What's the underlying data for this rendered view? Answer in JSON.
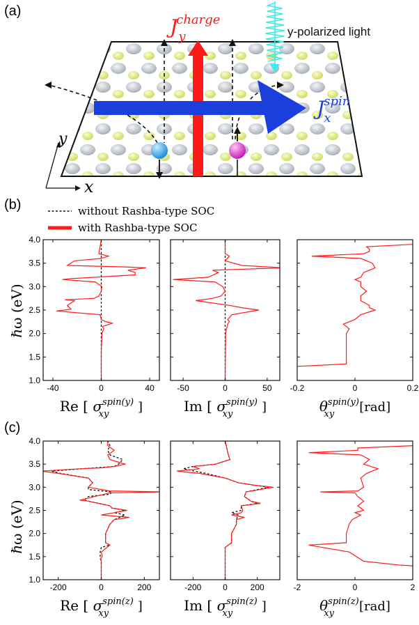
{
  "panel_labels": {
    "a": "(a)",
    "b": "(b)",
    "c": "(c)"
  },
  "schematic": {
    "charge_label": {
      "J": "J",
      "sub": "y",
      "sup": "charge"
    },
    "spin_label": {
      "J": "J",
      "sub": "x",
      "sup": "spin"
    },
    "light_label": "y-polarized light",
    "axis_x": "x",
    "axis_y": "y",
    "colors": {
      "charge": "#ff1a1a",
      "spin": "#1a3fdc",
      "light": "#3fe8f0",
      "atom_gray": "#c7ccd2",
      "atom_yellow": "#e6ee88",
      "electron_blue": "#2a9fe6",
      "electron_magenta": "#e629d8"
    }
  },
  "legend": {
    "without": "without Rashba-type SOC",
    "with": "with Rashba-type SOC"
  },
  "y_label": "ℏω (eV)",
  "chart_data": [
    {
      "id": "b1",
      "type": "line",
      "ylim": [
        1.0,
        4.0
      ],
      "xlim": [
        -48,
        48
      ],
      "yticks": [
        1.0,
        1.5,
        2.0,
        2.5,
        3.0,
        3.5,
        4.0
      ],
      "xticks": [
        {
          "v": -40,
          "l": "-40"
        },
        {
          "v": 0,
          "l": "0"
        },
        {
          "v": 40,
          "l": "40"
        }
      ],
      "xlabel": {
        "pre": "Re",
        "sup": "spin(y)",
        "sub": "xy"
      },
      "series": [
        {
          "name": "without Rashba-type SOC",
          "style": "dashed",
          "y": [
            1.0,
            4.0
          ],
          "x": [
            0,
            0
          ]
        },
        {
          "name": "with Rashba-type SOC",
          "style": "solid",
          "y": [
            1.0,
            1.6,
            2.0,
            2.1,
            2.15,
            2.2,
            2.22,
            2.24,
            2.26,
            2.3,
            2.4,
            2.48,
            2.5,
            2.52,
            2.6,
            2.7,
            2.72,
            2.75,
            2.8,
            2.9,
            3.0,
            3.1,
            3.15,
            3.17,
            3.2,
            3.25,
            3.3,
            3.35,
            3.4,
            3.42,
            3.45,
            3.55,
            3.6,
            3.65,
            3.7,
            4.0
          ],
          "x": [
            0,
            0,
            0.5,
            2,
            1,
            7,
            9,
            6,
            3,
            0,
            -1,
            -37,
            -30,
            -25,
            -28,
            -22,
            -30,
            -6,
            -2,
            0,
            0.5,
            -5,
            -32,
            -25,
            -5,
            28,
            28,
            22,
            37,
            20,
            -28,
            -22,
            0,
            6,
            -2,
            0
          ]
        }
      ]
    },
    {
      "id": "b2",
      "type": "line",
      "ylim": [
        1.0,
        4.0
      ],
      "xlim": [
        -65,
        65
      ],
      "yticks": [
        1.0,
        1.5,
        2.0,
        2.5,
        3.0,
        3.5,
        4.0
      ],
      "xticks": [
        {
          "v": -50,
          "l": "-50"
        },
        {
          "v": 0,
          "l": "0"
        },
        {
          "v": 50,
          "l": "50"
        }
      ],
      "xlabel": {
        "pre": "Im",
        "sup": "spin(y)",
        "sub": "xy"
      },
      "series": [
        {
          "name": "without Rashba-type SOC",
          "style": "dashed",
          "y": [
            1.0,
            4.0
          ],
          "x": [
            0,
            0
          ]
        },
        {
          "name": "with Rashba-type SOC",
          "style": "solid",
          "y": [
            1.0,
            2.0,
            2.2,
            2.25,
            2.3,
            2.4,
            2.5,
            2.55,
            2.6,
            2.7,
            2.75,
            2.8,
            2.9,
            3.0,
            3.1,
            3.15,
            3.2,
            3.3,
            3.35,
            3.4,
            3.45,
            3.55,
            3.65,
            3.7,
            4.0
          ],
          "x": [
            0,
            0.5,
            3,
            5,
            3,
            8,
            40,
            20,
            5,
            -35,
            -15,
            -5,
            0,
            -3,
            -12,
            -62,
            -20,
            -8,
            -15,
            70,
            20,
            0,
            5,
            0,
            0
          ]
        }
      ]
    },
    {
      "id": "b3",
      "type": "line",
      "ylim": [
        1.0,
        4.0
      ],
      "xlim": [
        -0.2,
        0.2
      ],
      "yticks": [
        1.0,
        1.5,
        2.0,
        2.5,
        3.0,
        3.5,
        4.0
      ],
      "xticks": [
        {
          "v": -0.2,
          "l": "-0.2"
        },
        {
          "v": 0,
          "l": "0"
        },
        {
          "v": 0.2,
          "l": "0.2"
        }
      ],
      "xlabel": {
        "pre": "θ",
        "sup": "spin(y)",
        "sub": "xy",
        "post": "[rad]"
      },
      "series": [
        {
          "name": "with Rashba-type SOC",
          "style": "solid",
          "y": [
            1.3,
            1.35,
            2.0,
            2.1,
            2.2,
            2.25,
            2.3,
            2.4,
            2.5,
            2.55,
            2.6,
            2.7,
            2.8,
            2.9,
            3.0,
            3.1,
            3.15,
            3.2,
            3.3,
            3.4,
            3.5,
            3.6,
            3.65,
            3.7,
            3.75,
            3.8,
            3.85,
            3.9
          ],
          "x": [
            -0.2,
            -0.03,
            -0.03,
            -0.02,
            -0.04,
            -0.02,
            0.0,
            0.02,
            0.07,
            0.05,
            0.05,
            0.02,
            0.02,
            0.04,
            0.02,
            0.02,
            0.0,
            0.02,
            0.03,
            0.07,
            0.06,
            0.02,
            -0.15,
            0.03,
            0.05,
            0.05,
            0.04,
            0.2
          ]
        }
      ]
    },
    {
      "id": "c1",
      "type": "line",
      "ylim": [
        1.0,
        4.0
      ],
      "xlim": [
        -270,
        270
      ],
      "yticks": [
        1.0,
        1.5,
        2.0,
        2.5,
        3.0,
        3.5,
        4.0
      ],
      "xticks": [
        {
          "v": -200,
          "l": "-200"
        },
        {
          "v": 0,
          "l": "0"
        },
        {
          "v": 200,
          "l": "200"
        }
      ],
      "xlabel": {
        "pre": "Re",
        "sup": "spin(z)",
        "sub": "xy"
      },
      "series": [
        {
          "name": "without Rashba-type SOC",
          "style": "dashed",
          "y": [
            1.0,
            1.4,
            1.5,
            1.6,
            1.7,
            1.75,
            1.8,
            2.0,
            2.2,
            2.3,
            2.4,
            2.45,
            2.5,
            2.55,
            2.6,
            2.7,
            2.72,
            2.8,
            2.85,
            2.9,
            2.95,
            3.0,
            3.1,
            3.2,
            3.3,
            3.35,
            3.4,
            3.45,
            3.5,
            3.6,
            3.7,
            3.8,
            3.9,
            4.0
          ],
          "x": [
            0,
            0,
            -5,
            -5,
            0,
            40,
            20,
            20,
            40,
            60,
            110,
            60,
            110,
            50,
            40,
            -60,
            -80,
            -60,
            40,
            50,
            -60,
            -60,
            -40,
            -60,
            -190,
            -230,
            -90,
            60,
            80,
            100,
            40,
            30,
            40,
            30
          ]
        },
        {
          "name": "with Rashba-type SOC",
          "style": "solid",
          "y": [
            1.0,
            1.4,
            1.45,
            1.5,
            1.6,
            1.75,
            1.8,
            2.0,
            2.2,
            2.3,
            2.35,
            2.4,
            2.45,
            2.5,
            2.55,
            2.6,
            2.7,
            2.72,
            2.8,
            2.88,
            2.9,
            2.92,
            3.0,
            3.1,
            3.2,
            3.3,
            3.35,
            3.4,
            3.42,
            3.45,
            3.5,
            3.6,
            3.7,
            3.8,
            3.9,
            4.0
          ],
          "x": [
            0,
            0,
            -5,
            5,
            0,
            40,
            20,
            20,
            40,
            60,
            130,
            0,
            60,
            120,
            50,
            40,
            -60,
            -100,
            -30,
            40,
            290,
            40,
            -60,
            -40,
            -60,
            -200,
            -280,
            -100,
            0,
            60,
            110,
            40,
            30,
            60,
            30,
            30
          ]
        }
      ]
    },
    {
      "id": "c2",
      "type": "line",
      "ylim": [
        1.0,
        4.0
      ],
      "xlim": [
        -340,
        340
      ],
      "yticks": [
        1.0,
        1.5,
        2.0,
        2.5,
        3.0,
        3.5,
        4.0
      ],
      "xticks": [
        {
          "v": -200,
          "l": "-200"
        },
        {
          "v": 0,
          "l": "0"
        },
        {
          "v": 200,
          "l": "200"
        }
      ],
      "xlabel": {
        "pre": "Im",
        "sup": "spin(z)",
        "sub": "xy"
      },
      "series": [
        {
          "name": "without Rashba-type SOC",
          "style": "dashed",
          "y": [
            1.0,
            1.7,
            1.8,
            2.0,
            2.2,
            2.3,
            2.4,
            2.45,
            2.5,
            2.6,
            2.65,
            2.7,
            2.8,
            2.9,
            3.0,
            3.05,
            3.1,
            3.2,
            3.3,
            3.4,
            3.45,
            3.5,
            3.6,
            3.7,
            4.0
          ],
          "x": [
            0,
            0,
            40,
            40,
            70,
            70,
            80,
            40,
            100,
            100,
            200,
            160,
            120,
            130,
            270,
            170,
            80,
            0,
            -120,
            -260,
            -200,
            -60,
            30,
            20,
            0
          ]
        },
        {
          "name": "with Rashba-type SOC",
          "style": "solid",
          "y": [
            1.0,
            1.7,
            1.8,
            2.0,
            2.2,
            2.3,
            2.35,
            2.4,
            2.45,
            2.5,
            2.6,
            2.65,
            2.7,
            2.8,
            2.9,
            3.0,
            3.05,
            3.1,
            3.2,
            3.3,
            3.35,
            3.4,
            3.45,
            3.5,
            3.6,
            3.7,
            4.0
          ],
          "x": [
            0,
            0,
            40,
            40,
            70,
            70,
            120,
            40,
            100,
            110,
            100,
            220,
            160,
            120,
            130,
            300,
            170,
            80,
            0,
            -160,
            -300,
            -160,
            -200,
            -60,
            30,
            20,
            0
          ]
        }
      ]
    },
    {
      "id": "c3",
      "type": "line",
      "ylim": [
        1.0,
        4.0
      ],
      "xlim": [
        -2,
        2
      ],
      "yticks": [
        1.0,
        1.5,
        2.0,
        2.5,
        3.0,
        3.5,
        4.0
      ],
      "xticks": [
        {
          "v": -2,
          "l": "-2"
        },
        {
          "v": 0,
          "l": "0"
        },
        {
          "v": 2,
          "l": "2"
        }
      ],
      "xlabel": {
        "pre": "θ",
        "sup": "spin(z)",
        "sub": "xy",
        "post": "[rad]"
      },
      "series": [
        {
          "name": "with Rashba-type SOC",
          "style": "solid",
          "y": [
            1.3,
            1.32,
            1.4,
            1.6,
            1.75,
            1.8,
            2.0,
            2.2,
            2.3,
            2.4,
            2.45,
            2.5,
            2.6,
            2.7,
            2.8,
            2.88,
            2.9,
            2.92,
            3.0,
            3.2,
            3.3,
            3.4,
            3.5,
            3.6,
            3.7,
            3.75,
            3.8,
            3.85,
            3.9
          ],
          "x": [
            2.0,
            1.5,
            0.3,
            -0.2,
            -1.6,
            -0.3,
            -0.3,
            -0.2,
            -0.1,
            0.2,
            0.0,
            0.3,
            0.1,
            0.3,
            0.1,
            0.0,
            -1.2,
            0.1,
            0.3,
            0.2,
            0.4,
            0.8,
            0.3,
            0.5,
            0.2,
            -1.6,
            0.1,
            0.1,
            2.0
          ]
        }
      ]
    }
  ]
}
